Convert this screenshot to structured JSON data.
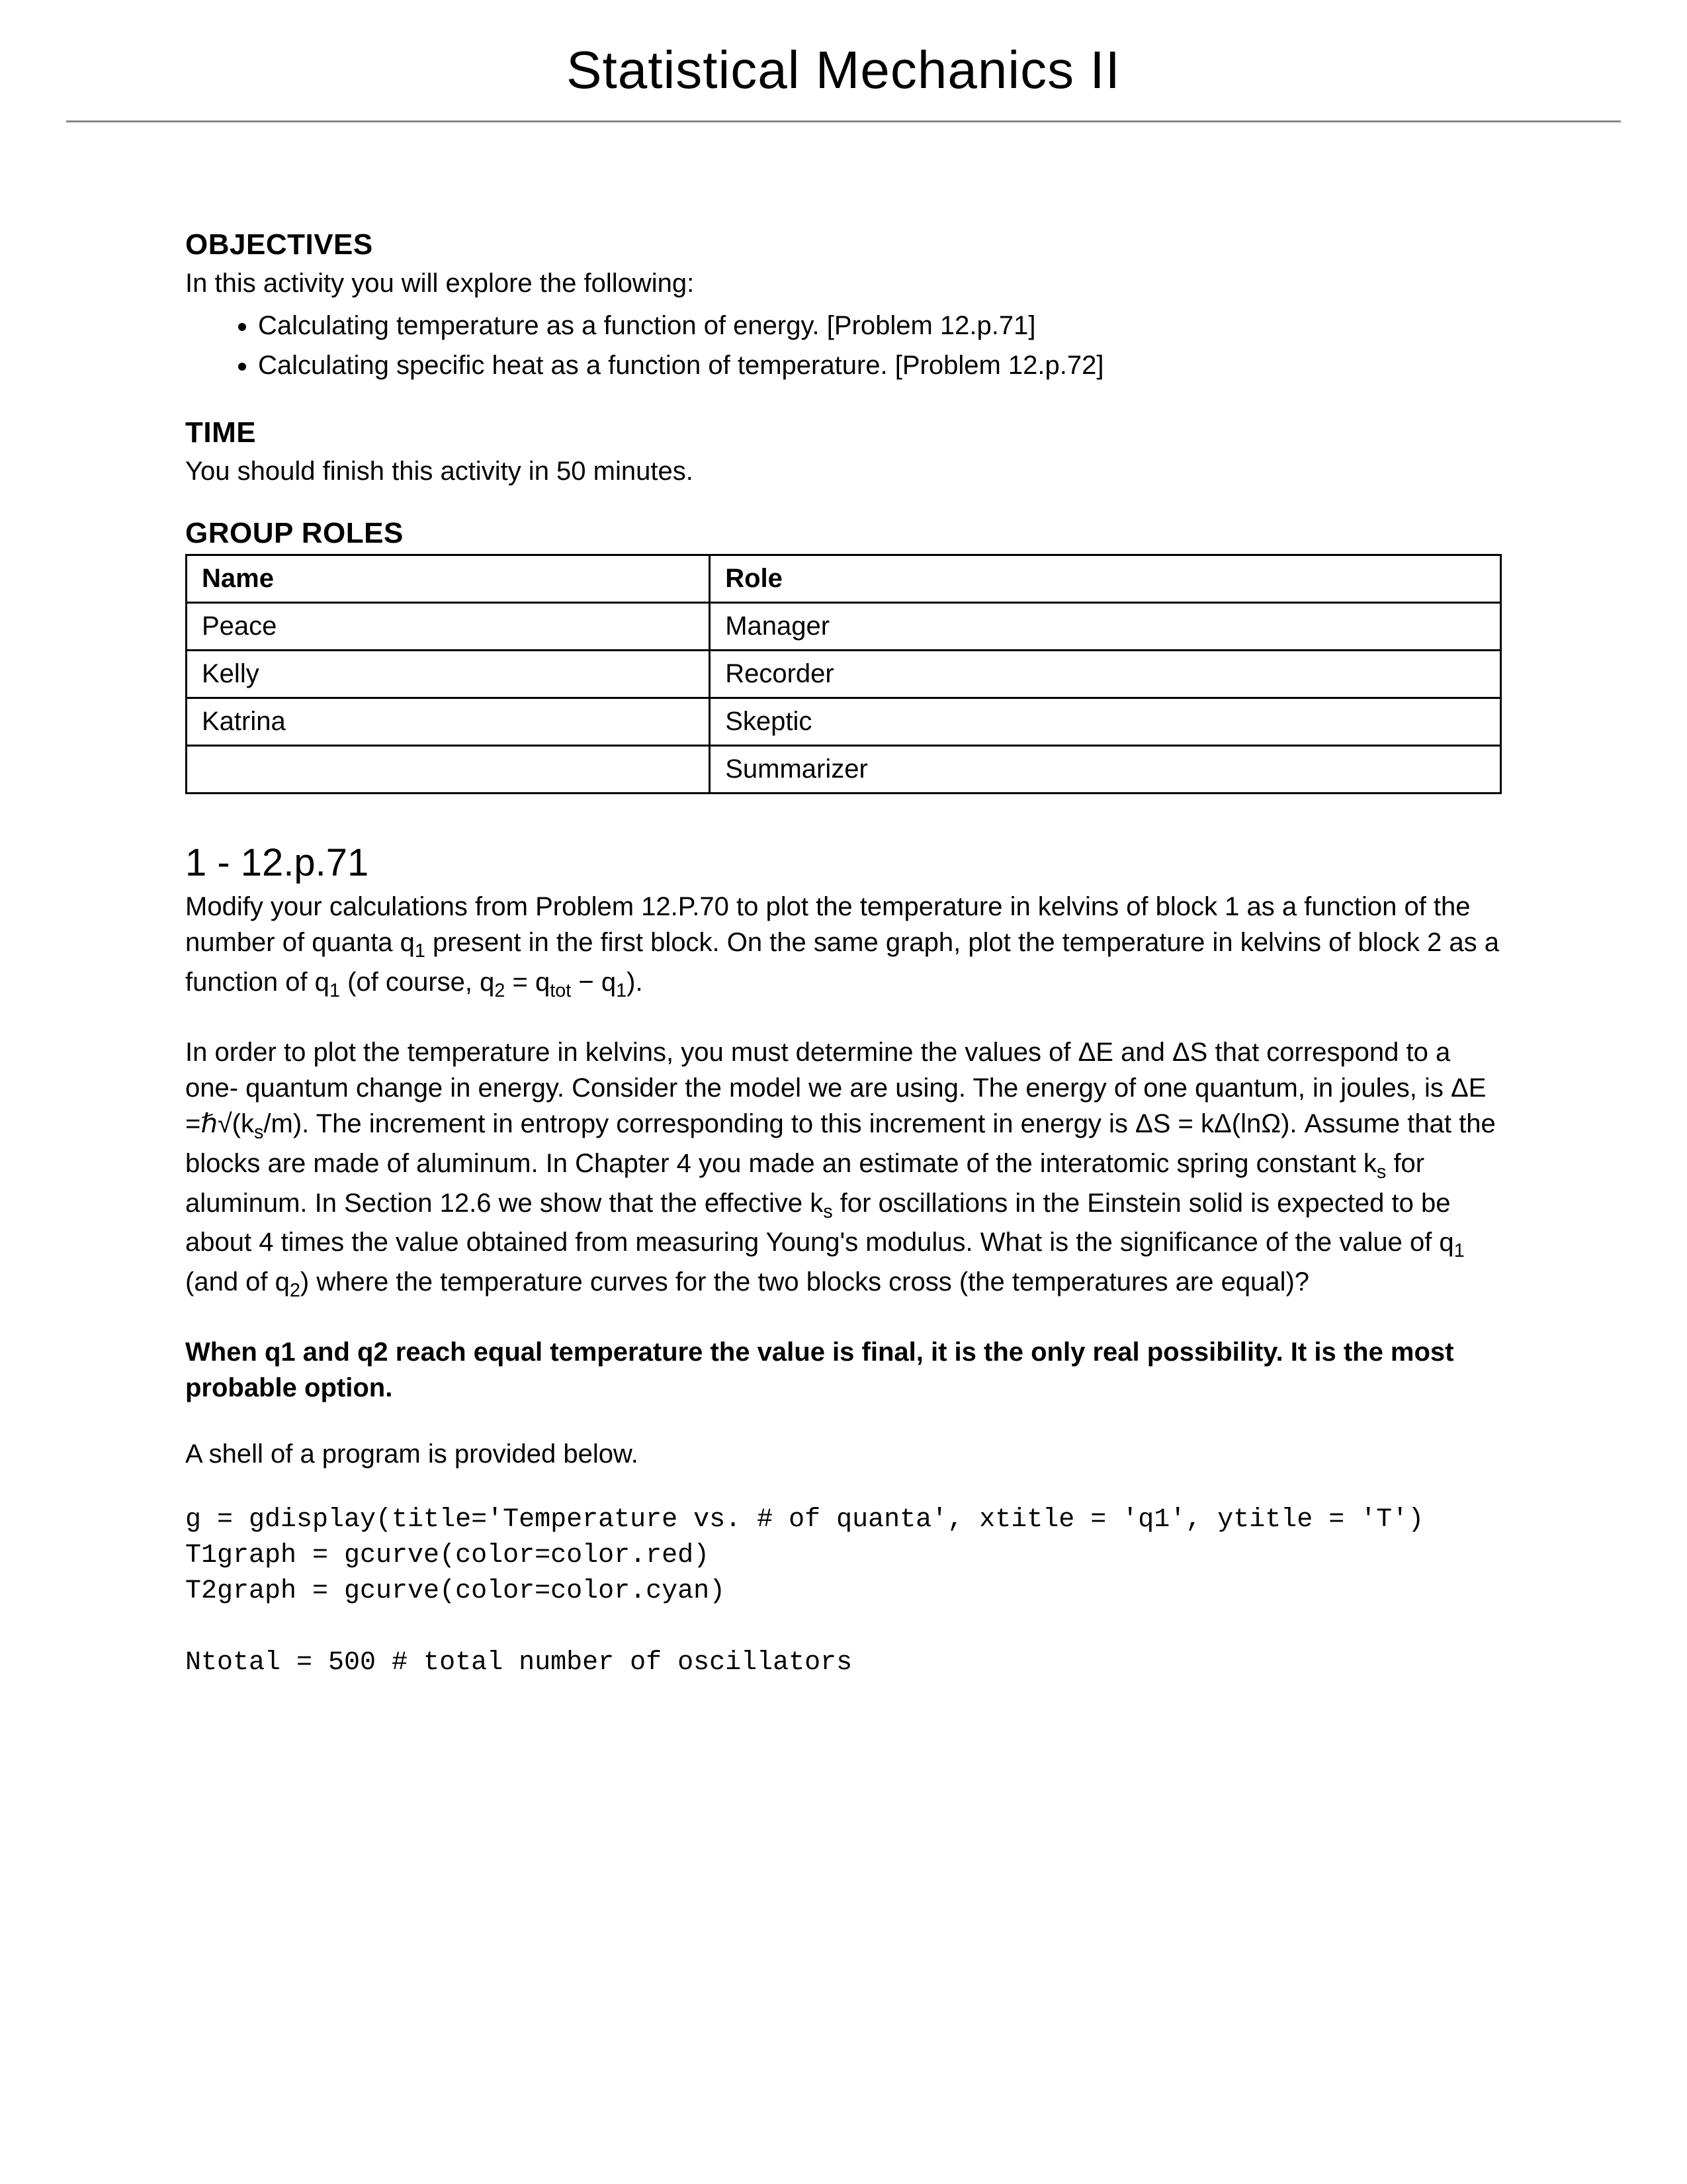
{
  "document": {
    "title": "Statistical Mechanics II",
    "title_fontsize": 80,
    "title_font": "Verdana",
    "rule_color": "#888888",
    "background_color": "#ffffff",
    "text_color": "#000000"
  },
  "objectives": {
    "heading": "OBJECTIVES",
    "intro": "In this activity you will explore the following:",
    "items": [
      "Calculating temperature as a function of energy. [Problem 12.p.71]",
      "Calculating specific heat as a function of temperature. [Problem 12.p.72]"
    ]
  },
  "time": {
    "heading": "TIME",
    "text": "You should finish this activity in 50 minutes."
  },
  "roles": {
    "heading": "GROUP ROLES",
    "columns": [
      "Name",
      "Role"
    ],
    "rows": [
      [
        "Peace",
        "Manager"
      ],
      [
        "Kelly",
        "Recorder"
      ],
      [
        "Katrina",
        "Skeptic"
      ],
      [
        "",
        "Summarizer"
      ]
    ],
    "border_color": "#000000",
    "cell_fontsize": 40
  },
  "problem": {
    "heading": "1 - 12.p.71",
    "para1_pre": "Modify your calculations from Problem 12.P.70 to plot the temperature in kelvins of block 1 as a function of the number of quanta q",
    "para1_mid1": " present in the first block. On the same graph, plot the temperature in kelvins of block 2 as a function of q",
    "para1_mid2": " (of course, q",
    "para1_mid3": " = q",
    "para1_mid4": " − q",
    "para1_end": ").",
    "para2_a": "In order to plot the temperature in kelvins, you must determine the values of ΔE and ΔS that correspond to a one- quantum change in energy. Consider the model we are using. The energy of one quantum, in joules, is ΔE =ℏ√(k",
    "para2_b": "/m). The increment in entropy corresponding to this increment in energy is ΔS = kΔ(lnΩ). Assume that the blocks are made of aluminum. In Chapter 4 you made an estimate of the interatomic spring constant k",
    "para2_c": " for aluminum. In Section 12.6 we show that the effective k",
    "para2_d": " for oscillations in the Einstein solid is expected to be about 4 times the value obtained from measuring Young's modulus. What is the significance of the value of q",
    "para2_e": " (and of q",
    "para2_f": ") where the temperature curves for the two blocks cross (the temperatures are equal)?",
    "answer": "When q1 and q2 reach equal temperature the value is final, it is the only real possibility. It is the most probable option.",
    "shell_intro": "A shell of a program is provided below.",
    "code_line1": "g = gdisplay(title='Temperature vs. # of quanta', xtitle = 'q1', ytitle = 'T')",
    "code_line2": "T1graph = gcurve(color=color.red)",
    "code_line3": "T2graph = gcurve(color=color.cyan)",
    "code_line4": "",
    "code_line5": "Ntotal = 500 # total number of oscillators",
    "code_font": "Courier New",
    "code_fontsize": 40
  },
  "subscripts": {
    "one": "1",
    "two": "2",
    "tot": "tot",
    "s": "s"
  }
}
